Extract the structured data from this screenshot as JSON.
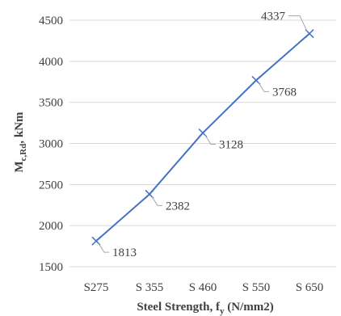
{
  "chart_data": {
    "type": "line",
    "categories": [
      "S275",
      "S 355",
      "S 460",
      "S 550",
      "S 650"
    ],
    "series": [
      {
        "values": [
          1813,
          2382,
          3128,
          3768,
          4337
        ]
      }
    ],
    "ylabel": {
      "main": "M",
      "sub": "c,Rd",
      "tail": ", kNm"
    },
    "xlabel": {
      "main": "Steel Strength, f",
      "sub": "y",
      "tail": " (N/mm2)"
    },
    "ylim": [
      1500,
      4500
    ],
    "yticks": [
      1500,
      2000,
      2500,
      3000,
      3500,
      4000,
      4500
    ],
    "grid": "horizontal",
    "line_color": "#4472C4",
    "marker": "cross",
    "data_labels": true
  }
}
